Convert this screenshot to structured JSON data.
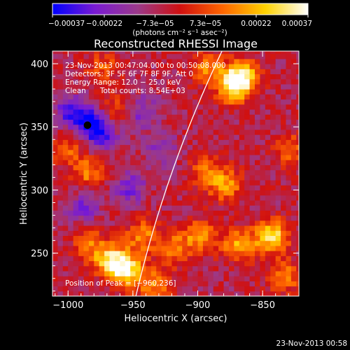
{
  "chart_data": {
    "type": "heatmap",
    "title": "Reconstructed RHESSI Image",
    "xlabel": "Heliocentric X (arcsec)",
    "ylabel": "Heliocentric Y (arcsec)",
    "xlim": [
      -1012,
      -822
    ],
    "ylim": [
      216,
      410
    ],
    "x_ticks": [
      {
        "value": -1000,
        "label": "−1000"
      },
      {
        "value": -950,
        "label": "−950"
      },
      {
        "value": -900,
        "label": "−900"
      },
      {
        "value": -850,
        "label": "−850"
      }
    ],
    "y_ticks": [
      {
        "value": 250,
        "label": "250"
      },
      {
        "value": 300,
        "label": "300"
      },
      {
        "value": 350,
        "label": "350"
      },
      {
        "value": 400,
        "label": "400"
      }
    ],
    "colorbar": {
      "range": [
        -0.00037,
        0.00037
      ],
      "tick_values": [
        -0.00037,
        -0.00022,
        -7.3e-05,
        7.3e-05,
        0.00022,
        0.00037
      ],
      "tick_labels": [
        "−0.00037",
        "−0.00022",
        "−7.3e−05",
        "7.3e−05",
        "0.00022",
        "0.00037"
      ],
      "unit": "(photons cm⁻² s⁻¹ asec⁻²)",
      "colors": [
        "#0000ff",
        "#7a1bd2",
        "#9b3a8a",
        "#d01010",
        "#ff6600",
        "#ffd200",
        "#ffffff"
      ]
    },
    "info_lines": [
      "23-Nov-2013 00:47:04.000 to 00:50:08.000",
      "Detectors: 3F 5F 6F 7F 8F 9F, Att 0",
      "Energy Range: 12.0 − 25.0 keV",
      "Clean      Total counts: 8.54E+03"
    ],
    "peak_label": "Position of Peak = [−960,236]",
    "peak_position": [
      -960,
      236
    ],
    "min_marker": [
      -985,
      352
    ],
    "features": [
      {
        "x": -868,
        "y": 388,
        "intensity": 0.9
      },
      {
        "x": -875,
        "y": 380,
        "intensity": 0.85
      },
      {
        "x": -895,
        "y": 395,
        "intensity": 0.55
      },
      {
        "x": -968,
        "y": 242,
        "intensity": 1.0
      },
      {
        "x": -955,
        "y": 234,
        "intensity": 0.85
      },
      {
        "x": -945,
        "y": 262,
        "intensity": 0.6
      },
      {
        "x": -845,
        "y": 262,
        "intensity": 0.95
      },
      {
        "x": -870,
        "y": 255,
        "intensity": 0.7
      },
      {
        "x": -900,
        "y": 262,
        "intensity": 0.6
      },
      {
        "x": -920,
        "y": 252,
        "intensity": 0.55
      },
      {
        "x": -880,
        "y": 302,
        "intensity": 0.6
      },
      {
        "x": -895,
        "y": 312,
        "intensity": 0.5
      },
      {
        "x": -835,
        "y": 230,
        "intensity": 0.55
      },
      {
        "x": -985,
        "y": 312,
        "intensity": 0.55
      },
      {
        "x": -985,
        "y": 255,
        "intensity": 0.5
      },
      {
        "x": -1003,
        "y": 330,
        "intensity": 0.4
      },
      {
        "x": -975,
        "y": 395,
        "intensity": 0.4
      },
      {
        "x": -965,
        "y": 362,
        "intensity": 0.35
      },
      {
        "x": -935,
        "y": 222,
        "intensity": 0.55
      },
      {
        "x": -830,
        "y": 330,
        "intensity": 0.45
      },
      {
        "x": -985,
        "y": 352,
        "intensity": -0.7
      },
      {
        "x": -1000,
        "y": 360,
        "intensity": -0.6
      },
      {
        "x": -975,
        "y": 340,
        "intensity": -0.55
      },
      {
        "x": -945,
        "y": 360,
        "intensity": -0.45
      },
      {
        "x": -955,
        "y": 300,
        "intensity": -0.5
      },
      {
        "x": -990,
        "y": 285,
        "intensity": -0.45
      },
      {
        "x": -930,
        "y": 330,
        "intensity": -0.35
      }
    ],
    "limb": {
      "center": [
        0,
        0
      ],
      "radius": 972,
      "color": "#ffffff"
    }
  },
  "footer_timestamp": "23-Nov-2013 00:58"
}
